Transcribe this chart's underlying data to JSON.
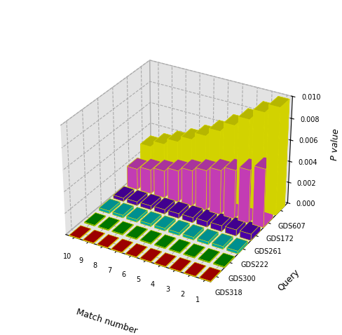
{
  "queries": [
    "GDS318",
    "GDS300",
    "GDS222",
    "GDS261",
    "GDS172",
    "GDS607"
  ],
  "match_numbers": [
    1,
    2,
    3,
    4,
    5,
    6,
    7,
    8,
    9,
    10
  ],
  "colors": [
    "#cc0000",
    "#009900",
    "#00bbbb",
    "#5500bb",
    "#dd44cc",
    "#eeee00"
  ],
  "pvalues": {
    "GDS318": [
      5e-05,
      5e-05,
      5e-05,
      5e-05,
      5e-05,
      5e-05,
      5e-05,
      5e-05,
      5e-05,
      5e-05
    ],
    "GDS300": [
      8e-05,
      8e-05,
      8e-05,
      8e-05,
      8e-05,
      8e-05,
      8e-05,
      8e-05,
      8e-05,
      8e-05
    ],
    "GDS222": [
      0.00025,
      0.00025,
      0.00025,
      0.00025,
      0.00025,
      0.00025,
      0.00025,
      0.00025,
      0.00025,
      0.00025
    ],
    "GDS261": [
      0.0006,
      0.00058,
      0.00055,
      0.00052,
      0.00048,
      0.00045,
      0.00042,
      0.00038,
      0.00035,
      0.00032
    ],
    "GDS172": [
      0.0055,
      0.005,
      0.0046,
      0.0042,
      0.0038,
      0.0034,
      0.003,
      0.0026,
      0.0023,
      0.002
    ],
    "GDS607": [
      0.01,
      0.0092,
      0.0082,
      0.0073,
      0.0064,
      0.0056,
      0.0049,
      0.0043,
      0.0037,
      0.0031
    ]
  },
  "zlim": [
    0,
    0.01
  ],
  "zticks": [
    0.0,
    0.002,
    0.004,
    0.006,
    0.008,
    0.01
  ],
  "ztick_labels": [
    "0.000",
    "0.002",
    "0.004",
    "0.006",
    "0.008",
    "0.010"
  ],
  "xlabel": "Match number",
  "ylabel": "Query",
  "zlabel": "P value",
  "elev": 30,
  "azim": -60
}
